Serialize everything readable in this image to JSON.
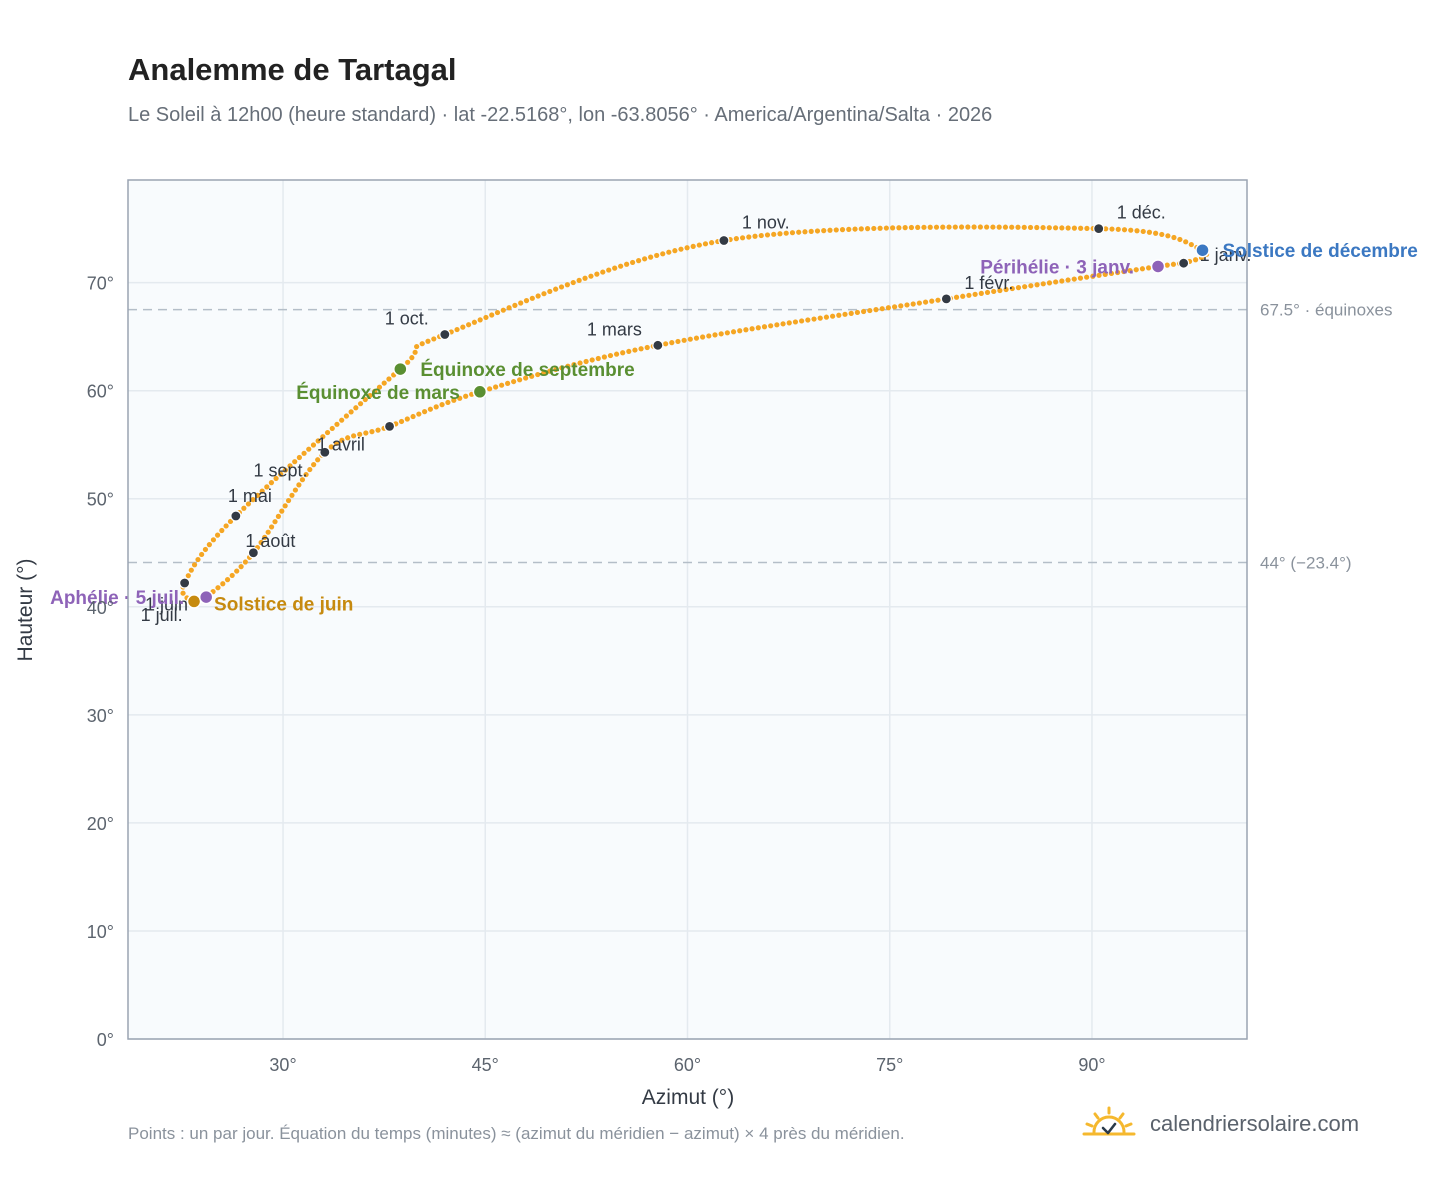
{
  "header": {
    "title": "Analemme de Tartagal",
    "subtitle": "Le Soleil à 12h00 (heure standard) · lat -22.5168°, lon -63.8056° · America/Argentina/Salta · 2026"
  },
  "footer": {
    "note": "Points : un par jour. Équation du temps (minutes) ≈ (azimut du méridien − azimut) × 4 près du méridien.",
    "brand": "calendriersolaire.com",
    "brand_icon": "sun-check-icon"
  },
  "chart_data": {
    "type": "scatter",
    "title": "Analemme de Tartagal",
    "xlabel": "Azimut (°)",
    "ylabel": "Hauteur (°)",
    "xlim": [
      18.5,
      101.5
    ],
    "ylim": [
      0,
      79.5
    ],
    "x_ticks": [
      30,
      45,
      60,
      75,
      90
    ],
    "x_tick_labels": [
      "30°",
      "45°",
      "60°",
      "75°",
      "90°"
    ],
    "y_ticks": [
      0,
      10,
      20,
      30,
      40,
      50,
      60,
      70
    ],
    "y_tick_labels": [
      "0°",
      "10°",
      "20°",
      "30°",
      "40°",
      "50°",
      "60°",
      "70°"
    ],
    "grid": true,
    "colors": {
      "curve": "#f5a623",
      "month_marker": "#333a44",
      "equinox": "#5a8f32",
      "solstice_june": "#c68a0f",
      "solstice_december": "#3b78c2",
      "apsis": "#8e63b8",
      "reference_line": "#b4bec8",
      "plot_bg": "#f8fbfd",
      "grid": "#e4eaef",
      "frame": "#9aa4b2"
    },
    "reference_lines": [
      {
        "y": 67.5,
        "label": "67.5° · équinoxes"
      },
      {
        "y": 44.1,
        "label": "44° (−23.4°)"
      }
    ],
    "path_keypoints": [
      {
        "x": 98.2,
        "y": 73.0
      },
      {
        "x": 96.8,
        "y": 71.8
      },
      {
        "x": 94.9,
        "y": 71.5
      },
      {
        "x": 79.2,
        "y": 68.5
      },
      {
        "x": 57.8,
        "y": 64.2
      },
      {
        "x": 44.6,
        "y": 59.9
      },
      {
        "x": 37.9,
        "y": 56.7
      },
      {
        "x": 33.1,
        "y": 54.3
      },
      {
        "x": 27.8,
        "y": 45.0
      },
      {
        "x": 24.3,
        "y": 40.9
      },
      {
        "x": 23.4,
        "y": 40.5
      },
      {
        "x": 22.7,
        "y": 42.2
      },
      {
        "x": 26.5,
        "y": 48.4
      },
      {
        "x": 38.7,
        "y": 62.0
      },
      {
        "x": 42.0,
        "y": 65.2
      },
      {
        "x": 62.7,
        "y": 73.9
      },
      {
        "x": 90.5,
        "y": 75.0
      }
    ],
    "month_points": [
      {
        "label": "1 janv.",
        "x": 96.8,
        "y": 71.8
      },
      {
        "label": "1 févr.",
        "x": 79.2,
        "y": 68.5
      },
      {
        "label": "1 mars",
        "x": 57.8,
        "y": 64.2
      },
      {
        "label": "1 avril",
        "x": 33.1,
        "y": 54.3
      },
      {
        "label": "1 mai",
        "x": 26.5,
        "y": 48.4
      },
      {
        "label": "1 juin",
        "x": 23.4,
        "y": 40.5
      },
      {
        "label": "1 juil.",
        "x": 22.7,
        "y": 42.2
      },
      {
        "label": "1 août",
        "x": 27.8,
        "y": 45.0
      },
      {
        "label": "1 sept.",
        "x": 37.9,
        "y": 56.7
      },
      {
        "label": "1 oct.",
        "x": 42.0,
        "y": 65.2
      },
      {
        "label": "1 nov.",
        "x": 62.7,
        "y": 73.9
      },
      {
        "label": "1 déc.",
        "x": 90.5,
        "y": 75.0
      }
    ],
    "events": [
      {
        "label": "Équinoxe de mars",
        "x": 44.6,
        "y": 59.9,
        "kind": "equinox"
      },
      {
        "label": "Équinoxe de septembre",
        "x": 38.7,
        "y": 62.0,
        "kind": "equinox"
      },
      {
        "label": "Solstice de juin",
        "x": 23.4,
        "y": 40.5,
        "kind": "solstice_june"
      },
      {
        "label": "Solstice de décembre",
        "x": 98.2,
        "y": 73.0,
        "kind": "solstice_december"
      },
      {
        "label": "Aphélie · 5 juil.",
        "x": 24.3,
        "y": 40.9,
        "kind": "apsis"
      },
      {
        "label": "Périhélie · 3 janv.",
        "x": 94.9,
        "y": 71.5,
        "kind": "apsis"
      }
    ]
  }
}
